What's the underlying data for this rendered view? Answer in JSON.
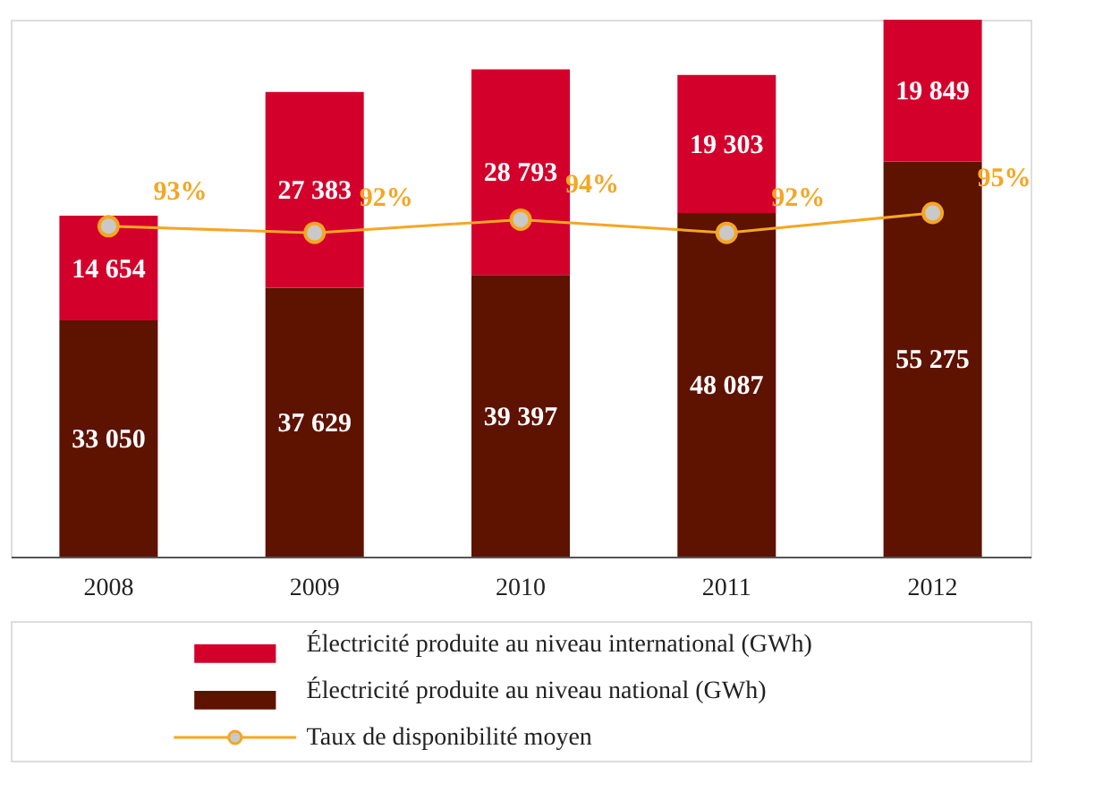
{
  "chart_data": {
    "type": "bar",
    "stacked": true,
    "categories": [
      "2008",
      "2009",
      "2010",
      "2011",
      "2012"
    ],
    "series": [
      {
        "name": "Électricité produite au niveau national (GWh)",
        "color": "#5e1200",
        "values": [
          33050,
          37629,
          39397,
          48087,
          55275
        ],
        "value_labels": [
          "33 050",
          "37 629",
          "39 397",
          "48 087",
          "55 275"
        ]
      },
      {
        "name": "Électricité produite au niveau international (GWh)",
        "color": "#d4002c",
        "values": [
          14654,
          27383,
          28793,
          19303,
          19849
        ],
        "value_labels": [
          "14 654",
          "27 383",
          "28 793",
          "19 303",
          "19 849"
        ]
      },
      {
        "name": "Taux de disponibilité moyen",
        "type": "line",
        "axis": "y2",
        "color": "#f5a623",
        "values": [
          93,
          92,
          94,
          92,
          95
        ],
        "value_labels": [
          "93%",
          "92%",
          "94%",
          "92%",
          "95%"
        ]
      }
    ],
    "legend": "bottom",
    "marker": "circle",
    "grid": false,
    "tick_labels": "x"
  }
}
